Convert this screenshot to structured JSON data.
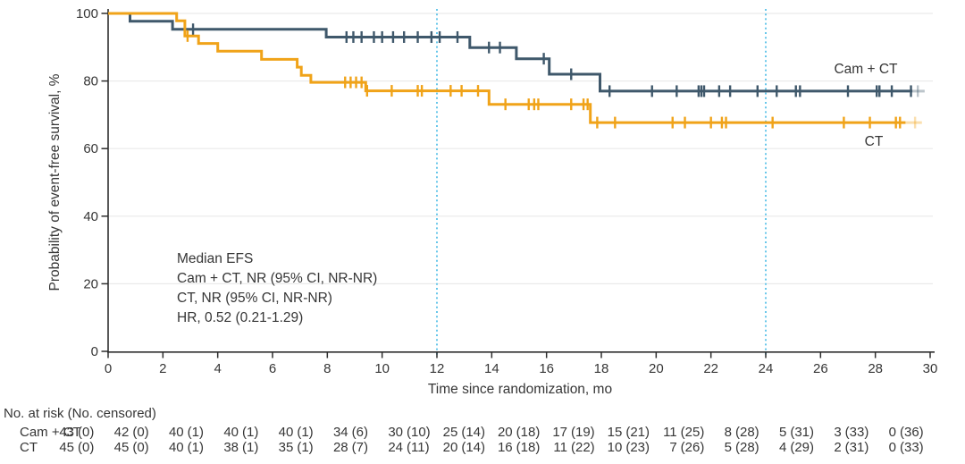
{
  "chart_data": {
    "type": "line",
    "subtype": "kaplan-meier-step",
    "title": "",
    "xlabel": "Time since randomization, mo",
    "ylabel": "Probability of event-free survival, %",
    "xlim": [
      0,
      30
    ],
    "ylim": [
      0,
      100
    ],
    "x_ticks": [
      0,
      2,
      4,
      6,
      8,
      10,
      12,
      14,
      16,
      18,
      20,
      22,
      24,
      26,
      28,
      30
    ],
    "y_ticks": [
      0,
      20,
      40,
      60,
      80,
      100
    ],
    "grid": "horizontal",
    "reference_lines_x": [
      12,
      24
    ],
    "annotation": [
      "Median EFS",
      "Cam + CT, NR (95% CI, NR-NR)",
      "CT, NR (95% CI, NR-NR)",
      "HR, 0.52 (0.21-1.29)"
    ],
    "colors": {
      "camct": "#3F586B",
      "ct": "#F0A319",
      "reference": "#58C1E8",
      "grid": "#EAEAEA",
      "axis": "#2E2E2E",
      "text": "#363636"
    },
    "series": [
      {
        "name": "Cam + CT",
        "color": "#3F586B",
        "steps": [
          [
            0,
            100
          ],
          [
            0.8,
            100
          ],
          [
            0.8,
            97.7
          ],
          [
            2.35,
            97.7
          ],
          [
            2.35,
            95.3
          ],
          [
            7.96,
            95.3
          ],
          [
            7.96,
            93.0
          ],
          [
            13.2,
            93.0
          ],
          [
            13.2,
            89.9
          ],
          [
            14.9,
            89.9
          ],
          [
            14.9,
            86.6
          ],
          [
            16.1,
            86.6
          ],
          [
            16.1,
            82.0
          ],
          [
            17.95,
            82.0
          ],
          [
            17.95,
            77.0
          ],
          [
            29.35,
            77.0
          ]
        ],
        "censors": [
          [
            3.1,
            95.3
          ],
          [
            8.7,
            93.0
          ],
          [
            8.95,
            93.0
          ],
          [
            9.25,
            93.0
          ],
          [
            9.7,
            93.0
          ],
          [
            10.0,
            93.0
          ],
          [
            10.4,
            93.0
          ],
          [
            10.8,
            93.0
          ],
          [
            11.3,
            93.0
          ],
          [
            11.8,
            93.0
          ],
          [
            12.1,
            93.0
          ],
          [
            12.75,
            93.0
          ],
          [
            13.9,
            89.9
          ],
          [
            14.3,
            89.9
          ],
          [
            15.9,
            86.6
          ],
          [
            16.9,
            82.0
          ],
          [
            18.3,
            77.0
          ],
          [
            19.85,
            77.0
          ],
          [
            20.75,
            77.0
          ],
          [
            21.55,
            77.0
          ],
          [
            21.65,
            77.0
          ],
          [
            21.75,
            77.0
          ],
          [
            22.3,
            77.0
          ],
          [
            22.7,
            77.0
          ],
          [
            23.7,
            77.0
          ],
          [
            24.4,
            77.0
          ],
          [
            25.1,
            77.0
          ],
          [
            25.25,
            77.0
          ],
          [
            27.0,
            77.0
          ],
          [
            28.05,
            77.0
          ],
          [
            28.15,
            77.0
          ],
          [
            28.6,
            77.0
          ],
          [
            29.3,
            77.0
          ]
        ],
        "fade": {
          "from": 29.35,
          "to": 29.8,
          "v": 77.0,
          "censor": 29.55
        }
      },
      {
        "name": "CT",
        "color": "#F0A319",
        "steps": [
          [
            0,
            100
          ],
          [
            2.5,
            100
          ],
          [
            2.5,
            97.8
          ],
          [
            2.8,
            97.8
          ],
          [
            2.8,
            93.3
          ],
          [
            3.3,
            93.3
          ],
          [
            3.3,
            91.1
          ],
          [
            4.0,
            91.1
          ],
          [
            4.0,
            88.8
          ],
          [
            5.6,
            88.8
          ],
          [
            5.6,
            86.4
          ],
          [
            6.9,
            86.4
          ],
          [
            6.9,
            84.1
          ],
          [
            7.05,
            84.1
          ],
          [
            7.05,
            81.7
          ],
          [
            7.4,
            81.7
          ],
          [
            7.4,
            79.6
          ],
          [
            9.4,
            79.6
          ],
          [
            9.4,
            77.1
          ],
          [
            13.9,
            77.1
          ],
          [
            13.9,
            73.1
          ],
          [
            17.6,
            73.1
          ],
          [
            17.6,
            67.7
          ],
          [
            29.1,
            67.7
          ]
        ],
        "censors": [
          [
            2.9,
            93.3
          ],
          [
            8.65,
            79.6
          ],
          [
            8.85,
            79.6
          ],
          [
            9.05,
            79.6
          ],
          [
            9.25,
            79.6
          ],
          [
            9.45,
            77.1
          ],
          [
            10.35,
            77.1
          ],
          [
            11.3,
            77.1
          ],
          [
            11.45,
            77.1
          ],
          [
            12.5,
            77.1
          ],
          [
            12.9,
            77.1
          ],
          [
            13.5,
            77.1
          ],
          [
            14.5,
            73.1
          ],
          [
            15.35,
            73.1
          ],
          [
            15.55,
            73.1
          ],
          [
            15.7,
            73.1
          ],
          [
            16.9,
            73.1
          ],
          [
            17.35,
            73.1
          ],
          [
            17.5,
            73.1
          ],
          [
            17.85,
            67.7
          ],
          [
            18.5,
            67.7
          ],
          [
            20.6,
            67.7
          ],
          [
            21.05,
            67.7
          ],
          [
            22.0,
            67.7
          ],
          [
            22.4,
            67.7
          ],
          [
            22.55,
            67.7
          ],
          [
            24.25,
            67.7
          ],
          [
            26.85,
            67.7
          ],
          [
            27.8,
            67.7
          ],
          [
            28.75,
            67.7
          ],
          [
            28.9,
            67.7
          ]
        ],
        "fade": {
          "from": 29.1,
          "to": 29.7,
          "v": 67.7,
          "censor": 29.45
        }
      }
    ]
  },
  "risk_table": {
    "header": "No. at risk (No. censored)",
    "times": [
      0,
      2,
      4,
      6,
      8,
      10,
      12,
      14,
      16,
      18,
      20,
      22,
      24,
      26,
      28,
      30
    ],
    "rows": [
      {
        "label": "Cam + CT",
        "cells": [
          "43 (0)",
          "42 (0)",
          "40 (1)",
          "40 (1)",
          "40 (1)",
          "34 (6)",
          "30 (10)",
          "25 (14)",
          "20 (18)",
          "17 (19)",
          "15 (21)",
          "11 (25)",
          "8 (28)",
          "5 (31)",
          "3 (33)",
          "0 (36)"
        ]
      },
      {
        "label": "CT",
        "cells": [
          "45 (0)",
          "45 (0)",
          "40 (1)",
          "38 (1)",
          "35 (1)",
          "28 (7)",
          "24 (11)",
          "20 (14)",
          "16 (18)",
          "11 (22)",
          "10 (23)",
          "7 (26)",
          "5 (28)",
          "4 (29)",
          "2 (31)",
          "0 (33)"
        ]
      }
    ]
  }
}
